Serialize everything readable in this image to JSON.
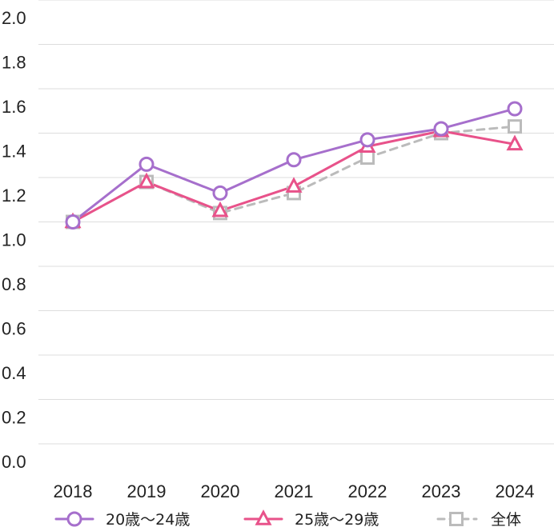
{
  "chart_data": {
    "type": "line",
    "title": "",
    "xlabel": "",
    "ylabel": "",
    "categories": [
      "2018",
      "2019",
      "2020",
      "2021",
      "2022",
      "2023",
      "2024"
    ],
    "ylim": [
      0.0,
      2.0
    ],
    "yticks": [
      "0.0",
      "0.2",
      "0.4",
      "0.6",
      "0.8",
      "1.0",
      "1.2",
      "1.4",
      "1.6",
      "1.8",
      "2.0"
    ],
    "grid": true,
    "legend_position": "bottom",
    "series": [
      {
        "name": "20歳〜24歳",
        "values": [
          1.0,
          1.26,
          1.13,
          1.28,
          1.37,
          1.42,
          1.51
        ],
        "color": "#a66fcc",
        "marker": "circle",
        "dash": "solid"
      },
      {
        "name": "25歳〜29歳",
        "values": [
          1.0,
          1.18,
          1.05,
          1.16,
          1.34,
          1.41,
          1.35
        ],
        "color": "#e8528a",
        "marker": "triangle",
        "dash": "solid"
      },
      {
        "name": "全体",
        "values": [
          1.0,
          1.18,
          1.04,
          1.13,
          1.29,
          1.4,
          1.43
        ],
        "color": "#bbbbbb",
        "marker": "square",
        "dash": "dashed"
      }
    ]
  }
}
